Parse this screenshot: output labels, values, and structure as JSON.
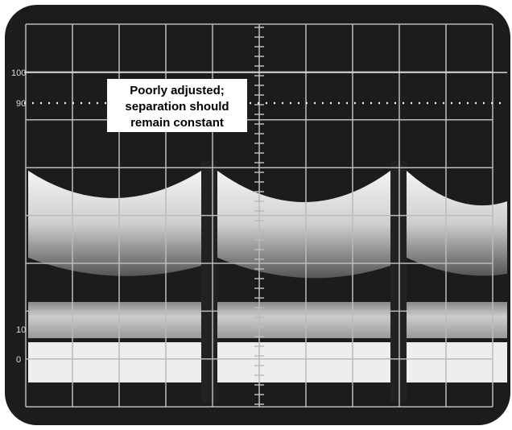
{
  "graticule_labels": [
    "100",
    "90",
    "10",
    "0"
  ],
  "annotation": {
    "lines": [
      "Poorly adjusted;",
      "separation should",
      "remain constant"
    ]
  }
}
